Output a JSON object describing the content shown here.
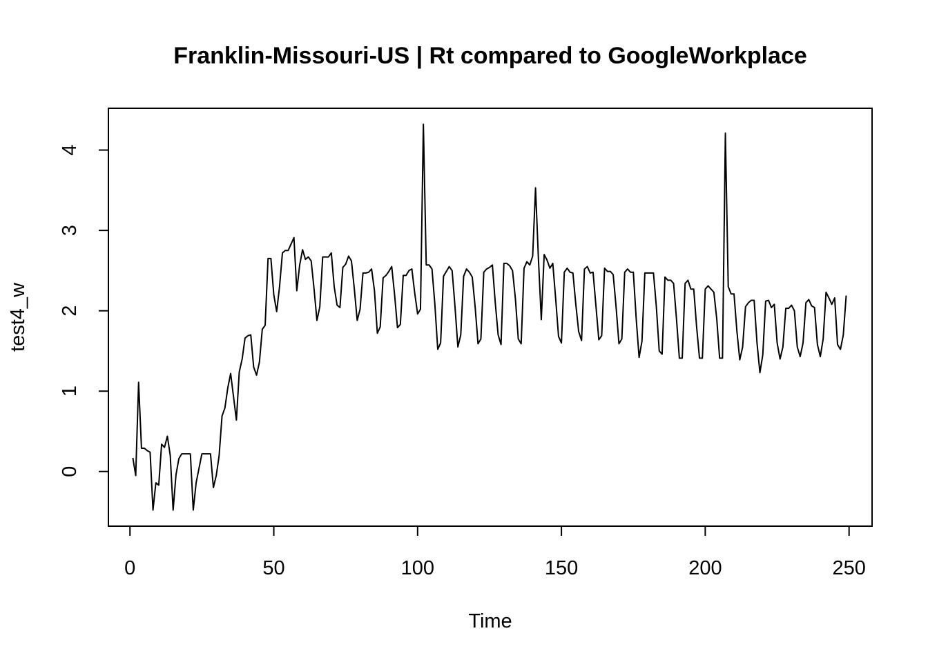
{
  "chart_data": {
    "type": "line",
    "title": "Franklin-Missouri-US | Rt compared to GoogleWorkplace",
    "xlabel": "Time",
    "ylabel": "test4_w",
    "xlim": [
      -7.5,
      258
    ],
    "ylim": [
      -0.68,
      4.52
    ],
    "xticks": [
      0,
      50,
      100,
      150,
      200,
      250
    ],
    "yticks": [
      0,
      1,
      2,
      3,
      4
    ],
    "grid": false,
    "legend": "none",
    "line_color": "#000000",
    "x_start": 1,
    "x_step": 1,
    "values": [
      0.17,
      -0.05,
      1.11,
      0.29,
      0.29,
      0.26,
      0.24,
      -0.48,
      -0.14,
      -0.17,
      0.34,
      0.3,
      0.44,
      0.2,
      -0.48,
      -0.04,
      0.16,
      0.22,
      0.22,
      0.22,
      0.22,
      -0.48,
      -0.14,
      0.04,
      0.22,
      0.22,
      0.22,
      0.22,
      -0.2,
      -0.05,
      0.2,
      0.69,
      0.79,
      1.04,
      1.22,
      0.93,
      0.64,
      1.24,
      1.4,
      1.66,
      1.69,
      1.7,
      1.3,
      1.2,
      1.36,
      1.77,
      1.82,
      2.65,
      2.65,
      2.2,
      1.99,
      2.3,
      2.72,
      2.75,
      2.75,
      2.83,
      2.91,
      2.25,
      2.57,
      2.76,
      2.64,
      2.67,
      2.62,
      2.27,
      1.88,
      2.05,
      2.67,
      2.67,
      2.67,
      2.72,
      2.3,
      2.07,
      2.04,
      2.54,
      2.58,
      2.68,
      2.62,
      2.27,
      1.88,
      2.02,
      2.47,
      2.47,
      2.48,
      2.52,
      2.25,
      1.72,
      1.8,
      2.41,
      2.44,
      2.49,
      2.55,
      2.2,
      1.79,
      1.83,
      2.44,
      2.44,
      2.5,
      2.52,
      2.22,
      1.96,
      2.02,
      4.32,
      2.57,
      2.57,
      2.52,
      2.08,
      1.52,
      1.6,
      2.43,
      2.49,
      2.55,
      2.5,
      2.05,
      1.55,
      1.7,
      2.43,
      2.52,
      2.48,
      2.42,
      2.05,
      1.59,
      1.65,
      2.48,
      2.52,
      2.54,
      2.57,
      2.1,
      1.7,
      1.58,
      2.59,
      2.59,
      2.56,
      2.5,
      2.15,
      1.65,
      1.59,
      2.53,
      2.61,
      2.57,
      2.68,
      3.53,
      2.65,
      1.89,
      2.7,
      2.63,
      2.53,
      2.59,
      2.15,
      1.68,
      1.6,
      2.48,
      2.53,
      2.48,
      2.47,
      2.08,
      1.74,
      1.63,
      2.52,
      2.55,
      2.47,
      2.48,
      2.06,
      1.64,
      1.69,
      2.53,
      2.49,
      2.49,
      2.45,
      2.05,
      1.59,
      1.65,
      2.48,
      2.52,
      2.48,
      2.48,
      1.9,
      1.42,
      1.62,
      2.47,
      2.47,
      2.47,
      2.47,
      2.05,
      1.5,
      1.46,
      2.42,
      2.38,
      2.38,
      2.34,
      1.9,
      1.41,
      1.41,
      2.34,
      2.38,
      2.27,
      2.27,
      1.8,
      1.41,
      1.41,
      2.27,
      2.31,
      2.27,
      2.23,
      1.9,
      1.41,
      1.41,
      4.21,
      2.3,
      2.21,
      2.21,
      1.75,
      1.39,
      1.55,
      2.05,
      2.1,
      2.13,
      2.13,
      1.6,
      1.23,
      1.45,
      2.12,
      2.13,
      2.04,
      2.08,
      1.6,
      1.4,
      1.55,
      2.03,
      2.03,
      2.07,
      2.0,
      1.55,
      1.43,
      1.6,
      2.1,
      2.14,
      2.06,
      2.04,
      1.58,
      1.43,
      1.65,
      2.23,
      2.16,
      2.08,
      2.16,
      1.58,
      1.52,
      1.7,
      2.19
    ]
  }
}
